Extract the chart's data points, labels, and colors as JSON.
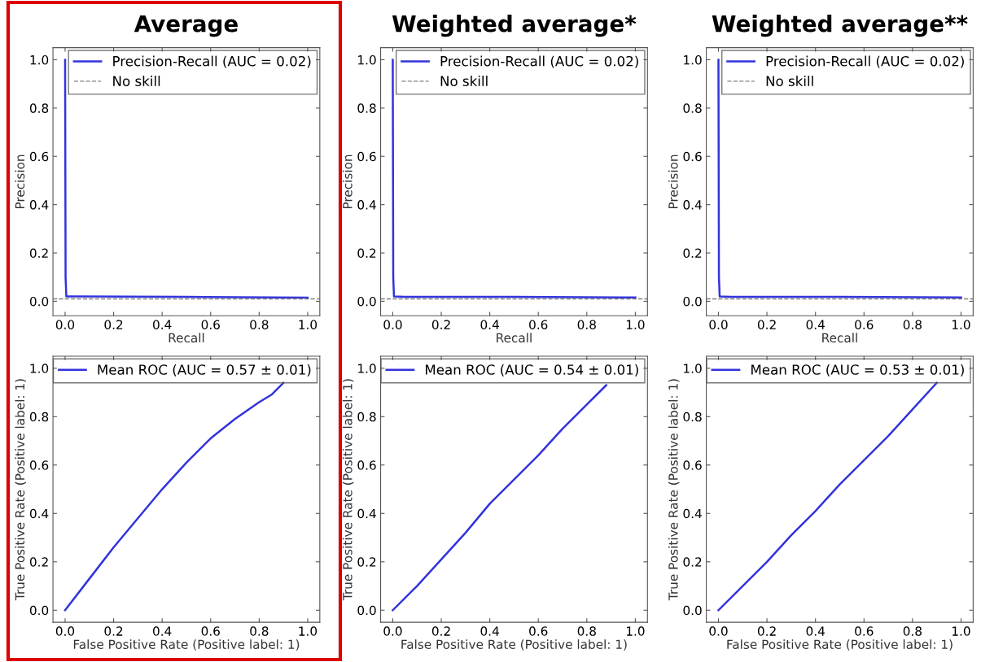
{
  "chart_data": [
    {
      "type": "line",
      "title": "Average",
      "xlabel": "Recall",
      "ylabel": "Precision",
      "legend": "top right",
      "grid": false,
      "series": [
        {
          "name": "Precision-Recall (AUC = 0.02)",
          "color": "#3333dd",
          "x": [
            0,
            0.002,
            0.005,
            0.05,
            0.5,
            1.0
          ],
          "values": [
            1.0,
            0.1,
            0.02,
            0.02,
            0.018,
            0.015
          ]
        }
      ],
      "ref_lines": [
        {
          "axis": "y",
          "value": 0.01,
          "label": "No skill",
          "color": "#808080",
          "line_style": "dashed"
        }
      ],
      "xlim": [
        -0.05,
        1.05
      ],
      "ylim": [
        -0.06,
        1.05
      ],
      "xticks": [
        {
          "value": 0,
          "label": "0.0"
        },
        {
          "value": 0.2,
          "label": "0.2"
        },
        {
          "value": 0.4,
          "label": "0.4"
        },
        {
          "value": 0.6,
          "label": "0.6"
        },
        {
          "value": 0.8,
          "label": "0.8"
        },
        {
          "value": 1,
          "label": "1.0"
        }
      ],
      "yticks": [
        {
          "value": 0,
          "label": "0.0"
        },
        {
          "value": 0.2,
          "label": "0.2"
        },
        {
          "value": 0.4,
          "label": "0.4"
        },
        {
          "value": 0.6,
          "label": "0.6"
        },
        {
          "value": 0.8,
          "label": "0.8"
        },
        {
          "value": 1,
          "label": "1.0"
        }
      ]
    },
    {
      "type": "line",
      "title": "Weighted average*",
      "xlabel": "Recall",
      "ylabel": "Precision",
      "legend": "top right",
      "grid": false,
      "series": [
        {
          "name": "Precision-Recall (AUC = 0.02)",
          "color": "#3333dd",
          "x": [
            0,
            0.002,
            0.005,
            0.05,
            0.5,
            1.0
          ],
          "values": [
            1.0,
            0.1,
            0.02,
            0.018,
            0.018,
            0.016
          ]
        }
      ],
      "ref_lines": [
        {
          "axis": "y",
          "value": 0.01,
          "label": "No skill",
          "color": "#808080",
          "line_style": "dashed"
        }
      ],
      "xlim": [
        -0.05,
        1.05
      ],
      "ylim": [
        -0.06,
        1.05
      ],
      "xticks": [
        {
          "value": 0,
          "label": "0.0"
        },
        {
          "value": 0.2,
          "label": "0.2"
        },
        {
          "value": 0.4,
          "label": "0.4"
        },
        {
          "value": 0.6,
          "label": "0.6"
        },
        {
          "value": 0.8,
          "label": "0.8"
        },
        {
          "value": 1,
          "label": "1.0"
        }
      ],
      "yticks": [
        {
          "value": 0,
          "label": "0.0"
        },
        {
          "value": 0.2,
          "label": "0.2"
        },
        {
          "value": 0.4,
          "label": "0.4"
        },
        {
          "value": 0.6,
          "label": "0.6"
        },
        {
          "value": 0.8,
          "label": "0.8"
        },
        {
          "value": 1,
          "label": "1.0"
        }
      ]
    },
    {
      "type": "line",
      "title": "Weighted average**",
      "xlabel": "Recall",
      "ylabel": "Precision",
      "legend": "top right",
      "grid": false,
      "series": [
        {
          "name": "Precision-Recall (AUC = 0.02)",
          "color": "#3333dd",
          "x": [
            0,
            0.002,
            0.005,
            0.05,
            0.5,
            1.0
          ],
          "values": [
            1.0,
            0.1,
            0.02,
            0.018,
            0.018,
            0.016
          ]
        }
      ],
      "ref_lines": [
        {
          "axis": "y",
          "value": 0.01,
          "label": "No skill",
          "color": "#808080",
          "line_style": "dashed"
        }
      ],
      "xlim": [
        -0.05,
        1.05
      ],
      "ylim": [
        -0.06,
        1.05
      ],
      "xticks": [
        {
          "value": 0,
          "label": "0.0"
        },
        {
          "value": 0.2,
          "label": "0.2"
        },
        {
          "value": 0.4,
          "label": "0.4"
        },
        {
          "value": 0.6,
          "label": "0.6"
        },
        {
          "value": 0.8,
          "label": "0.8"
        },
        {
          "value": 1,
          "label": "1.0"
        }
      ],
      "yticks": [
        {
          "value": 0,
          "label": "0.0"
        },
        {
          "value": 0.2,
          "label": "0.2"
        },
        {
          "value": 0.4,
          "label": "0.4"
        },
        {
          "value": 0.6,
          "label": "0.6"
        },
        {
          "value": 0.8,
          "label": "0.8"
        },
        {
          "value": 1,
          "label": "1.0"
        }
      ]
    },
    {
      "type": "line",
      "xlabel": "False Positive Rate (Positive label: 1)",
      "ylabel": "True Positive Rate (Positive label: 1)",
      "legend": "top right",
      "grid": false,
      "series": [
        {
          "name": "Mean ROC (AUC = 0.57 ± 0.01)",
          "color": "#3333dd",
          "x": [
            0,
            0.1,
            0.2,
            0.3,
            0.4,
            0.5,
            0.6,
            0.7,
            0.8,
            0.85,
            0.9
          ],
          "values": [
            0,
            0.13,
            0.26,
            0.38,
            0.5,
            0.61,
            0.71,
            0.79,
            0.86,
            0.89,
            0.94
          ]
        }
      ],
      "xlim": [
        -0.05,
        1.05
      ],
      "ylim": [
        -0.05,
        1.05
      ],
      "xticks": [
        {
          "value": 0,
          "label": "0.0"
        },
        {
          "value": 0.2,
          "label": "0.2"
        },
        {
          "value": 0.4,
          "label": "0.4"
        },
        {
          "value": 0.6,
          "label": "0.6"
        },
        {
          "value": 0.8,
          "label": "0.8"
        },
        {
          "value": 1,
          "label": "1.0"
        }
      ],
      "yticks": [
        {
          "value": 0,
          "label": "0.0"
        },
        {
          "value": 0.2,
          "label": "0.2"
        },
        {
          "value": 0.4,
          "label": "0.4"
        },
        {
          "value": 0.6,
          "label": "0.6"
        },
        {
          "value": 0.8,
          "label": "0.8"
        },
        {
          "value": 1,
          "label": "1.0"
        }
      ]
    },
    {
      "type": "line",
      "xlabel": "False Positive Rate (Positive label: 1)",
      "ylabel": "True Positive Rate (Positive label: 1)",
      "legend": "top right",
      "grid": false,
      "series": [
        {
          "name": "Mean ROC (AUC = 0.54 ± 0.01)",
          "color": "#3333dd",
          "x": [
            0,
            0.1,
            0.2,
            0.3,
            0.4,
            0.5,
            0.6,
            0.7,
            0.8,
            0.88
          ],
          "values": [
            0,
            0.1,
            0.21,
            0.32,
            0.44,
            0.54,
            0.64,
            0.75,
            0.85,
            0.93
          ]
        }
      ],
      "xlim": [
        -0.05,
        1.05
      ],
      "ylim": [
        -0.05,
        1.05
      ],
      "xticks": [
        {
          "value": 0,
          "label": "0.0"
        },
        {
          "value": 0.2,
          "label": "0.2"
        },
        {
          "value": 0.4,
          "label": "0.4"
        },
        {
          "value": 0.6,
          "label": "0.6"
        },
        {
          "value": 0.8,
          "label": "0.8"
        },
        {
          "value": 1,
          "label": "1.0"
        }
      ],
      "yticks": [
        {
          "value": 0,
          "label": "0.0"
        },
        {
          "value": 0.2,
          "label": "0.2"
        },
        {
          "value": 0.4,
          "label": "0.4"
        },
        {
          "value": 0.6,
          "label": "0.6"
        },
        {
          "value": 0.8,
          "label": "0.8"
        },
        {
          "value": 1,
          "label": "1.0"
        }
      ]
    },
    {
      "type": "line",
      "xlabel": "False Positive Rate (Positive label: 1)",
      "ylabel": "True Positive Rate (Positive label: 1)",
      "legend": "top right",
      "grid": false,
      "series": [
        {
          "name": "Mean ROC (AUC = 0.53 ± 0.01)",
          "color": "#3333dd",
          "x": [
            0,
            0.1,
            0.2,
            0.3,
            0.4,
            0.5,
            0.6,
            0.7,
            0.8,
            0.9
          ],
          "values": [
            0,
            0.1,
            0.2,
            0.31,
            0.41,
            0.52,
            0.62,
            0.72,
            0.83,
            0.94
          ]
        }
      ],
      "xlim": [
        -0.05,
        1.05
      ],
      "ylim": [
        -0.05,
        1.05
      ],
      "xticks": [
        {
          "value": 0,
          "label": "0.0"
        },
        {
          "value": 0.2,
          "label": "0.2"
        },
        {
          "value": 0.4,
          "label": "0.4"
        },
        {
          "value": 0.6,
          "label": "0.6"
        },
        {
          "value": 0.8,
          "label": "0.8"
        },
        {
          "value": 1,
          "label": "1.0"
        }
      ],
      "yticks": [
        {
          "value": 0,
          "label": "0.0"
        },
        {
          "value": 0.2,
          "label": "0.2"
        },
        {
          "value": 0.4,
          "label": "0.4"
        },
        {
          "value": 0.6,
          "label": "0.6"
        },
        {
          "value": 0.8,
          "label": "0.8"
        },
        {
          "value": 1,
          "label": "1.0"
        }
      ]
    }
  ]
}
